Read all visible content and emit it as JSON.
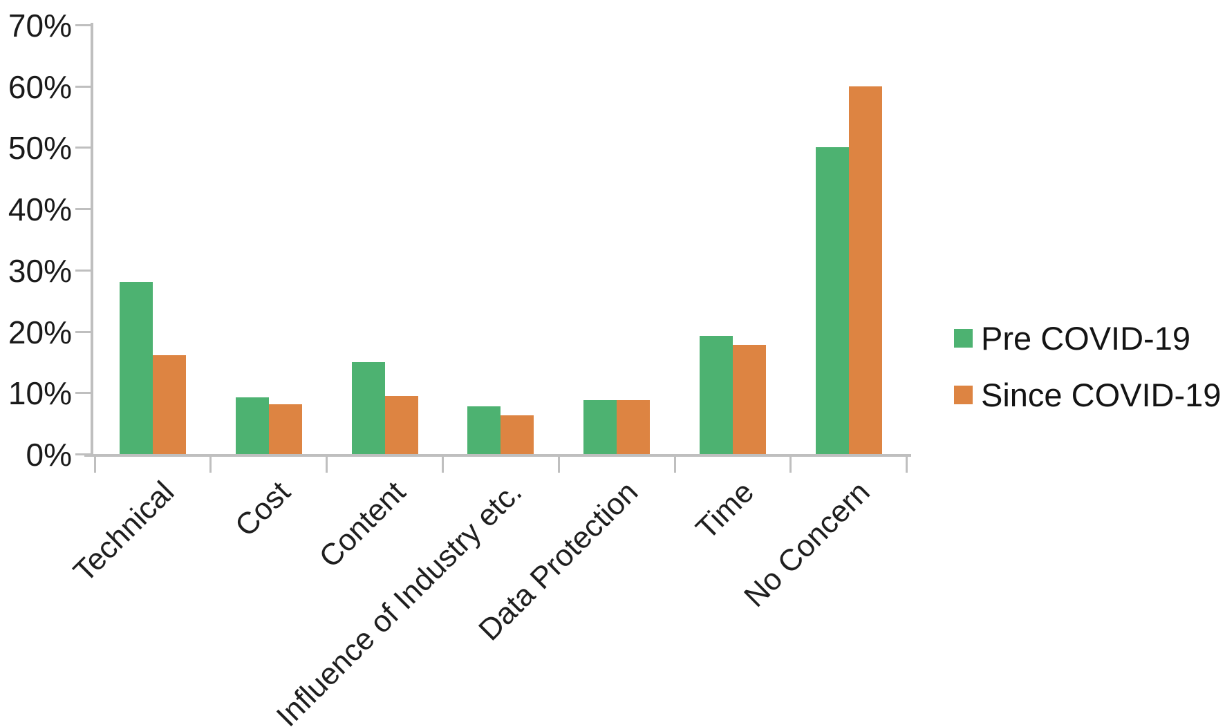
{
  "chart_data": {
    "type": "bar",
    "title": "",
    "xlabel": "",
    "ylabel": "",
    "categories": [
      "Technical",
      "Cost",
      "Content",
      "Influence of Industry etc.",
      "Data Protection",
      "Time",
      "No Concern"
    ],
    "series": [
      {
        "name": "Pre COVID-19",
        "color": "#4db271",
        "values": [
          28.1,
          9.2,
          15.0,
          7.8,
          8.8,
          19.3,
          50.0
        ]
      },
      {
        "name": "Since COVID-19",
        "color": "#dd8442",
        "values": [
          16.1,
          8.1,
          9.5,
          6.3,
          8.8,
          17.8,
          60.0
        ]
      }
    ],
    "ylim": [
      0,
      70
    ],
    "y_tick_labels": [
      "0%",
      "10%",
      "20%",
      "30%",
      "40%",
      "50%",
      "60%",
      "70%"
    ],
    "grid": false,
    "legend_position": "right"
  },
  "colors": {
    "axis": "#bfbfbf",
    "tick_text": "#1a1a1a",
    "background": "#ffffff"
  }
}
